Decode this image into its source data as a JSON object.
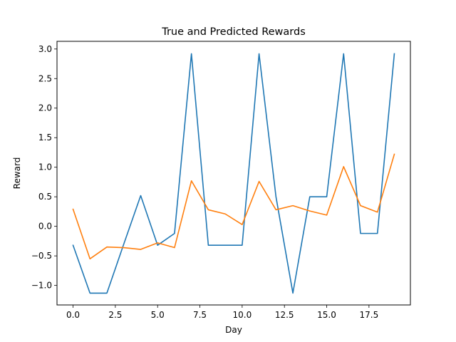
{
  "chart_data": {
    "type": "line",
    "title": "True and Predicted Rewards",
    "xlabel": "Day",
    "ylabel": "Reward",
    "xlim": [
      -0.95,
      19.95
    ],
    "ylim": [
      -1.33,
      3.13
    ],
    "xticks": [
      0.0,
      2.5,
      5.0,
      7.5,
      10.0,
      12.5,
      15.0,
      17.5
    ],
    "xtick_labels": [
      "0.0",
      "2.5",
      "5.0",
      "7.5",
      "10.0",
      "12.5",
      "15.0",
      "17.5"
    ],
    "yticks": [
      -1.0,
      -0.5,
      0.0,
      0.5,
      1.0,
      1.5,
      2.0,
      2.5,
      3.0
    ],
    "ytick_labels": [
      "−1.0",
      "−0.5",
      "0.0",
      "0.5",
      "1.0",
      "1.5",
      "2.0",
      "2.5",
      "3.0"
    ],
    "grid": false,
    "x": [
      0,
      1,
      2,
      3,
      4,
      5,
      6,
      7,
      8,
      9,
      10,
      11,
      12,
      13,
      14,
      15,
      16,
      17,
      18,
      19
    ],
    "series": [
      {
        "color": "#1f77b4",
        "values": [
          -0.32,
          -1.13,
          -1.13,
          -0.3,
          0.52,
          -0.32,
          -0.12,
          2.92,
          -0.32,
          -0.32,
          -0.32,
          2.92,
          0.5,
          -1.13,
          0.5,
          0.5,
          2.92,
          -0.12,
          -0.12,
          2.92
        ]
      },
      {
        "color": "#ff7f0e",
        "values": [
          0.29,
          -0.55,
          -0.35,
          -0.36,
          -0.39,
          -0.28,
          -0.36,
          0.77,
          0.28,
          0.21,
          0.03,
          0.76,
          0.28,
          0.35,
          0.26,
          0.19,
          1.01,
          0.35,
          0.24,
          1.22
        ]
      }
    ]
  }
}
